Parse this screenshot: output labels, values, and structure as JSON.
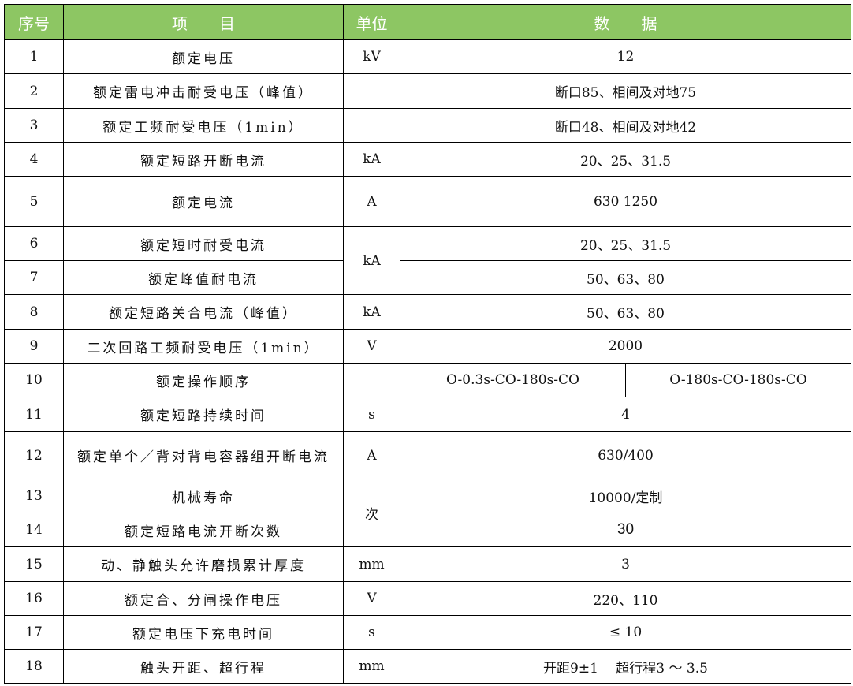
{
  "colors": {
    "header_bg": "#8dc663",
    "header_text": "#ffffff",
    "border": "#000000"
  },
  "header": {
    "no": "序号",
    "item": "项　　目",
    "unit": "单位",
    "data": "数　　据"
  },
  "rows": [
    {
      "no": "1",
      "item": "额定电压",
      "unit": "kV",
      "data": "12"
    },
    {
      "no": "2",
      "item": "额定雷电冲击耐受电压（峰值）",
      "unit": "",
      "data": "断口85、相间及对地75"
    },
    {
      "no": "3",
      "item": "额定工频耐受电压（1min）",
      "unit": "",
      "data": "断口48、相间及对地42"
    },
    {
      "no": "4",
      "item": "额定短路开断电流",
      "unit": "kA",
      "data": "20、25、31.5"
    },
    {
      "no": "5",
      "item": "额定电流",
      "unit": "A",
      "data": "630 1250"
    },
    {
      "no": "6",
      "item": "额定短时耐受电流",
      "unit": "kA",
      "data": "20、25、31.5"
    },
    {
      "no": "7",
      "item": "额定峰值耐电流",
      "unit": null,
      "data": "50、63、80"
    },
    {
      "no": "8",
      "item": "额定短路关合电流（峰值）",
      "unit": "kA",
      "data": "50、63、80"
    },
    {
      "no": "9",
      "item": "二次回路工频耐受电压（1min）",
      "unit": "V",
      "data": "2000"
    },
    {
      "no": "10",
      "item": "额定操作顺序",
      "unit": "",
      "data": "O-0.3s-CO-180s-CO",
      "data2": "O-180s-CO-180s-CO"
    },
    {
      "no": "11",
      "item": "额定短路持续时间",
      "unit": "s",
      "data": "4"
    },
    {
      "no": "12",
      "item": "额定单个／背对背电容器组开断电流",
      "unit": "A",
      "data": "630/400"
    },
    {
      "no": "13",
      "item": "机械寿命",
      "unit": "次",
      "data": "10000/定制"
    },
    {
      "no": "14",
      "item": "额定短路电流开断次数",
      "unit": null,
      "data": "30"
    },
    {
      "no": "15",
      "item": "动、静触头允许磨损累计厚度",
      "unit": "mm",
      "data": "3"
    },
    {
      "no": "16",
      "item": "额定合、分闸操作电压",
      "unit": "V",
      "data": "220、110"
    },
    {
      "no": "17",
      "item": "额定电压下充电时间",
      "unit": "s",
      "data": "≤ 10"
    },
    {
      "no": "18",
      "item": "触头开距、超行程",
      "unit": "mm",
      "data": "开距9±1　 超行程3 ～ 3.5"
    }
  ]
}
